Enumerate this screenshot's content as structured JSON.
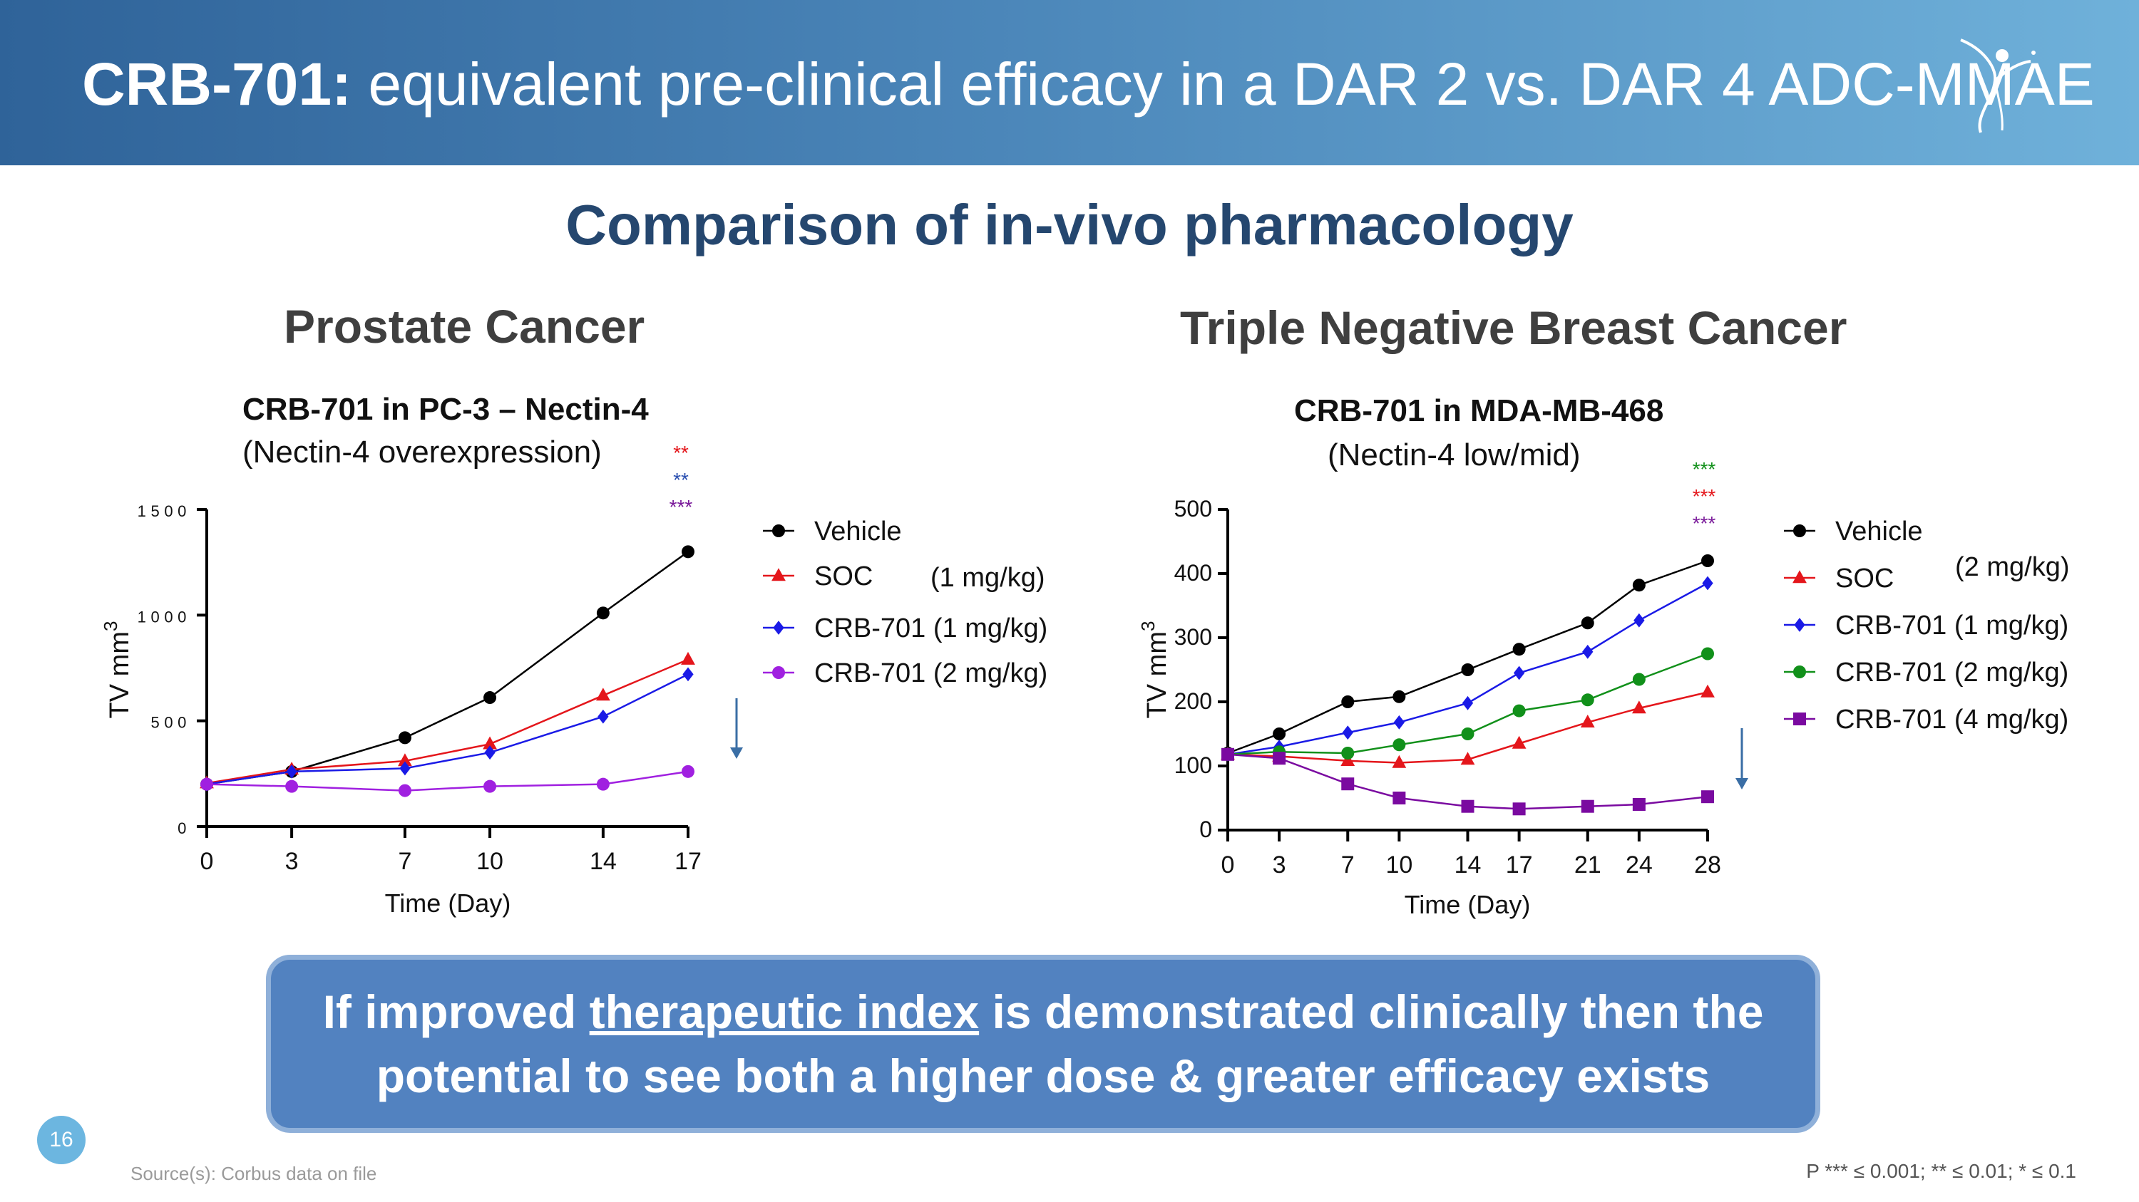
{
  "header": {
    "title_bold": "CRB-701:",
    "title_rest": " equivalent pre-clinical efficacy in a DAR 2 vs. DAR 4 ADC-MMAE"
  },
  "main_title": "Comparison of in-vivo pharmacology",
  "sections": {
    "left": "Prostate Cancer",
    "right": "Triple Negative Breast Cancer"
  },
  "callout": {
    "line1_pre": "If improved ",
    "line1_link": "therapeutic index",
    "line1_post": " is demonstrated clinically then the",
    "line2": "potential to see both a higher dose & greater efficacy exists"
  },
  "footer": {
    "page": "16",
    "source": "Source(s): Corbus data on file",
    "pvalues": "P *** ≤ 0.001; ** ≤ 0.01; * ≤ 0.1"
  },
  "chart_data": [
    {
      "type": "line",
      "title": "CRB-701 in PC-3 – Nectin-4",
      "subtitle": "(Nectin-4 overexpression)",
      "xlabel": "Time (Day)",
      "ylabel": "TV mm",
      "ylabel_sup": "3",
      "x": [
        0,
        3,
        7,
        10,
        14,
        17
      ],
      "xlim": [
        0,
        17
      ],
      "ylim": [
        0,
        1500
      ],
      "xticks": [
        0,
        3,
        7,
        10,
        14,
        17
      ],
      "yticks": [
        0,
        500,
        1000,
        1500
      ],
      "series": [
        {
          "name": "Vehicle",
          "color": "#000000",
          "marker": "circle",
          "values": [
            200,
            260,
            420,
            610,
            1010,
            1300
          ]
        },
        {
          "name": "SOC",
          "color": "#e4161b",
          "marker": "triangle",
          "values": [
            205,
            270,
            310,
            390,
            620,
            790
          ]
        },
        {
          "name": "CRB-701 (1 mg/kg)",
          "color": "#1a1ae6",
          "marker": "diamond",
          "values": [
            200,
            260,
            275,
            350,
            520,
            720
          ]
        },
        {
          "name": "CRB-701 (2 mg/kg)",
          "color": "#a020e0",
          "marker": "circle",
          "values": [
            200,
            190,
            170,
            190,
            200,
            260
          ]
        }
      ],
      "legend_annotation": "(1 mg/kg)",
      "significance": [
        {
          "text": "**",
          "color": "#e4161b"
        },
        {
          "text": "**",
          "color": "#2a4fb0"
        },
        {
          "text": "***",
          "color": "#7a1a9a"
        }
      ]
    },
    {
      "type": "line",
      "title": "CRB-701 in MDA-MB-468",
      "subtitle": "(Nectin-4 low/mid)",
      "xlabel": "Time (Day)",
      "ylabel": "TV mm",
      "ylabel_sup": "3",
      "x": [
        0,
        3,
        7,
        10,
        14,
        17,
        21,
        24,
        28
      ],
      "xlim": [
        0,
        28
      ],
      "ylim": [
        0,
        500
      ],
      "xticks": [
        0,
        3,
        7,
        10,
        14,
        17,
        21,
        24,
        28
      ],
      "yticks": [
        0,
        100,
        200,
        300,
        400,
        500
      ],
      "series": [
        {
          "name": "Vehicle",
          "color": "#000000",
          "marker": "circle",
          "values": [
            120,
            150,
            200,
            208,
            250,
            282,
            323,
            382,
            420
          ]
        },
        {
          "name": "SOC",
          "color": "#e4161b",
          "marker": "triangle",
          "values": [
            118,
            115,
            108,
            105,
            110,
            135,
            168,
            190,
            215
          ]
        },
        {
          "name": "CRB-701 (1 mg/kg)",
          "color": "#1a1ae6",
          "marker": "diamond",
          "values": [
            118,
            130,
            152,
            168,
            198,
            245,
            278,
            327,
            385
          ]
        },
        {
          "name": "CRB-701 (2 mg/kg)",
          "color": "#11901a",
          "marker": "circle",
          "values": [
            118,
            122,
            120,
            133,
            150,
            186,
            203,
            235,
            275
          ]
        },
        {
          "name": "CRB-701 (4 mg/kg)",
          "color": "#7a0aa0",
          "marker": "square",
          "values": [
            118,
            112,
            72,
            50,
            37,
            33,
            37,
            40,
            52
          ]
        }
      ],
      "legend_annotation": "(2 mg/kg)",
      "significance": [
        {
          "text": "***",
          "color": "#11901a"
        },
        {
          "text": "***",
          "color": "#e4161b"
        },
        {
          "text": "***",
          "color": "#7a1a9a"
        }
      ]
    }
  ]
}
